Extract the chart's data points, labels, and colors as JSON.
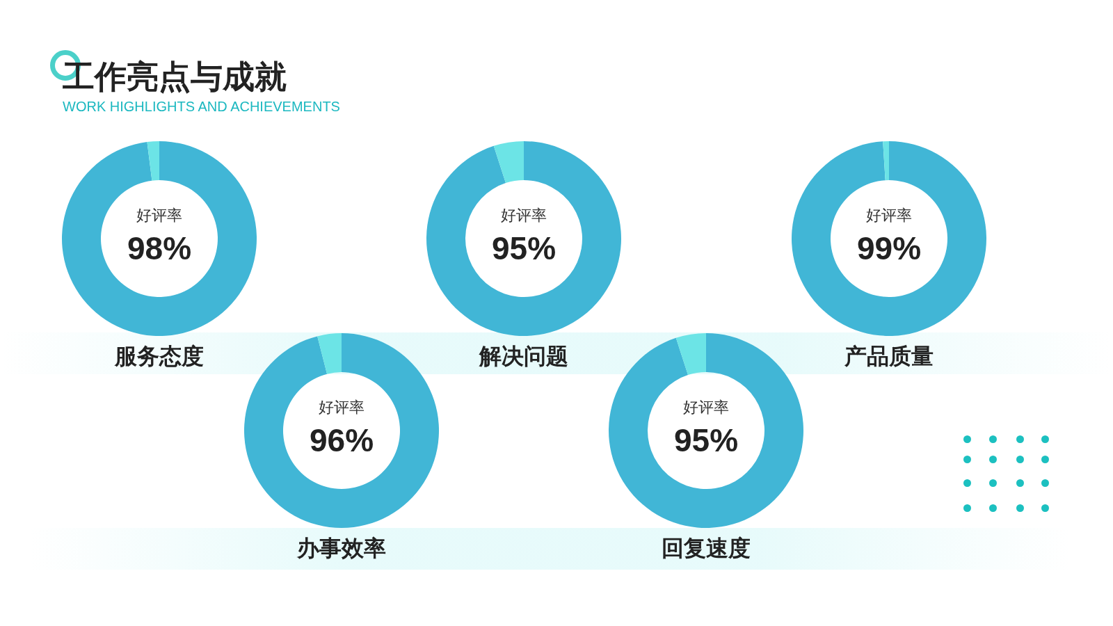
{
  "chart_data": [
    {
      "type": "other",
      "title": "工作亮点与成就",
      "subtitle": "WORK HIGHLIGHTS AND ACHIEVEMENTS"
    },
    {
      "type": "donut",
      "title": "服务态度",
      "categories": [
        null,
        null
      ],
      "values": [
        98,
        2
      ],
      "colors": [
        "#41b6d6",
        "#6ce4e6"
      ],
      "value_labels": [
        "98%",
        null
      ],
      "annotations": [
        "好评率"
      ]
    },
    {
      "type": "donut",
      "title": "解决问题",
      "categories": [
        null,
        null
      ],
      "values": [
        95,
        5
      ],
      "colors": [
        "#41b6d6",
        "#6ce4e6"
      ],
      "value_labels": [
        "95%",
        null
      ],
      "annotations": [
        "好评率"
      ]
    },
    {
      "type": "donut",
      "title": "产品质量",
      "categories": [
        null,
        null
      ],
      "values": [
        99,
        1
      ],
      "colors": [
        "#41b6d6",
        "#6ce4e6"
      ],
      "value_labels": [
        "99%",
        null
      ],
      "annotations": [
        "好评率"
      ]
    },
    {
      "type": "donut",
      "title": "办事效率",
      "categories": [
        null,
        null
      ],
      "values": [
        96,
        4
      ],
      "colors": [
        "#41b6d6",
        "#6ce4e6"
      ],
      "value_labels": [
        "96%",
        null
      ],
      "annotations": [
        "好评率"
      ]
    },
    {
      "type": "donut",
      "title": "回复速度",
      "categories": [
        null,
        null
      ],
      "values": [
        95,
        5
      ],
      "colors": [
        "#41b6d6",
        "#6ce4e6"
      ],
      "value_labels": [
        "95%",
        null
      ],
      "annotations": [
        "好评率"
      ]
    }
  ]
}
